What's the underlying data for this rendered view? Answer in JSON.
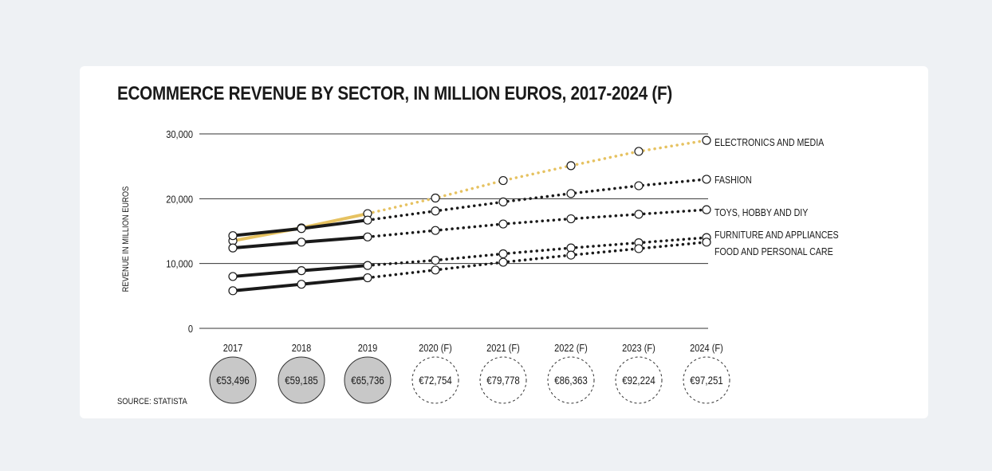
{
  "title": "ECOMMERCE REVENUE BY SECTOR, IN MILLION EUROS, 2017-2024 (F)",
  "source": "SOURCE: STATISTA",
  "colors": {
    "actual": "#1a1a1a",
    "electronics": "#e6c261",
    "forecast": "#1a1a1a",
    "total_actual_fill": "#c8c8c8",
    "grid": "#333333"
  },
  "chart_data": {
    "type": "line",
    "title": "ECOMMERCE REVENUE BY SECTOR, IN MILLION EUROS, 2017-2024 (F)",
    "xlabel": "",
    "ylabel": "REVENUE IN MILLION EUROS",
    "categories": [
      "2017",
      "2018",
      "2019",
      "2020 (F)",
      "2021 (F)",
      "2022 (F)",
      "2023 (F)",
      "2024 (F)"
    ],
    "ylim": [
      0,
      30000
    ],
    "yticks": [
      "0",
      "10,000",
      "20,000",
      "30,000"
    ],
    "ytick_values": [
      0,
      10000,
      20000,
      30000
    ],
    "grid": true,
    "forecast_start_index": 2,
    "legend": "labels at right end of lines",
    "series": [
      {
        "name": "ELECTRONICS AND MEDIA",
        "color": "#e6c261",
        "values": [
          13500,
          15500,
          17700,
          20100,
          22800,
          25100,
          27300,
          29000
        ]
      },
      {
        "name": "FASHION",
        "color": "#1a1a1a",
        "values": [
          14300,
          15400,
          16700,
          18100,
          19500,
          20800,
          22000,
          23000
        ]
      },
      {
        "name": "TOYS, HOBBY AND DIY",
        "color": "#1a1a1a",
        "values": [
          12400,
          13300,
          14100,
          15100,
          16100,
          16900,
          17600,
          18300
        ]
      },
      {
        "name": "FURNITURE AND APPLIANCES",
        "color": "#1a1a1a",
        "values": [
          8000,
          8900,
          9700,
          10500,
          11500,
          12400,
          13200,
          14000
        ]
      },
      {
        "name": "FOOD AND PERSONAL CARE",
        "color": "#1a1a1a",
        "values": [
          5800,
          6800,
          7800,
          9000,
          10200,
          11300,
          12300,
          13300
        ]
      }
    ],
    "totals": {
      "labels": [
        "€53,496",
        "€59,185",
        "€65,736",
        "€72,754",
        "€79,778",
        "€86,363",
        "€92,224",
        "€97,251"
      ],
      "values": [
        53496,
        59185,
        65736,
        72754,
        79778,
        86363,
        92224,
        97251
      ],
      "forecast": [
        false,
        false,
        false,
        true,
        true,
        true,
        true,
        true
      ]
    }
  }
}
